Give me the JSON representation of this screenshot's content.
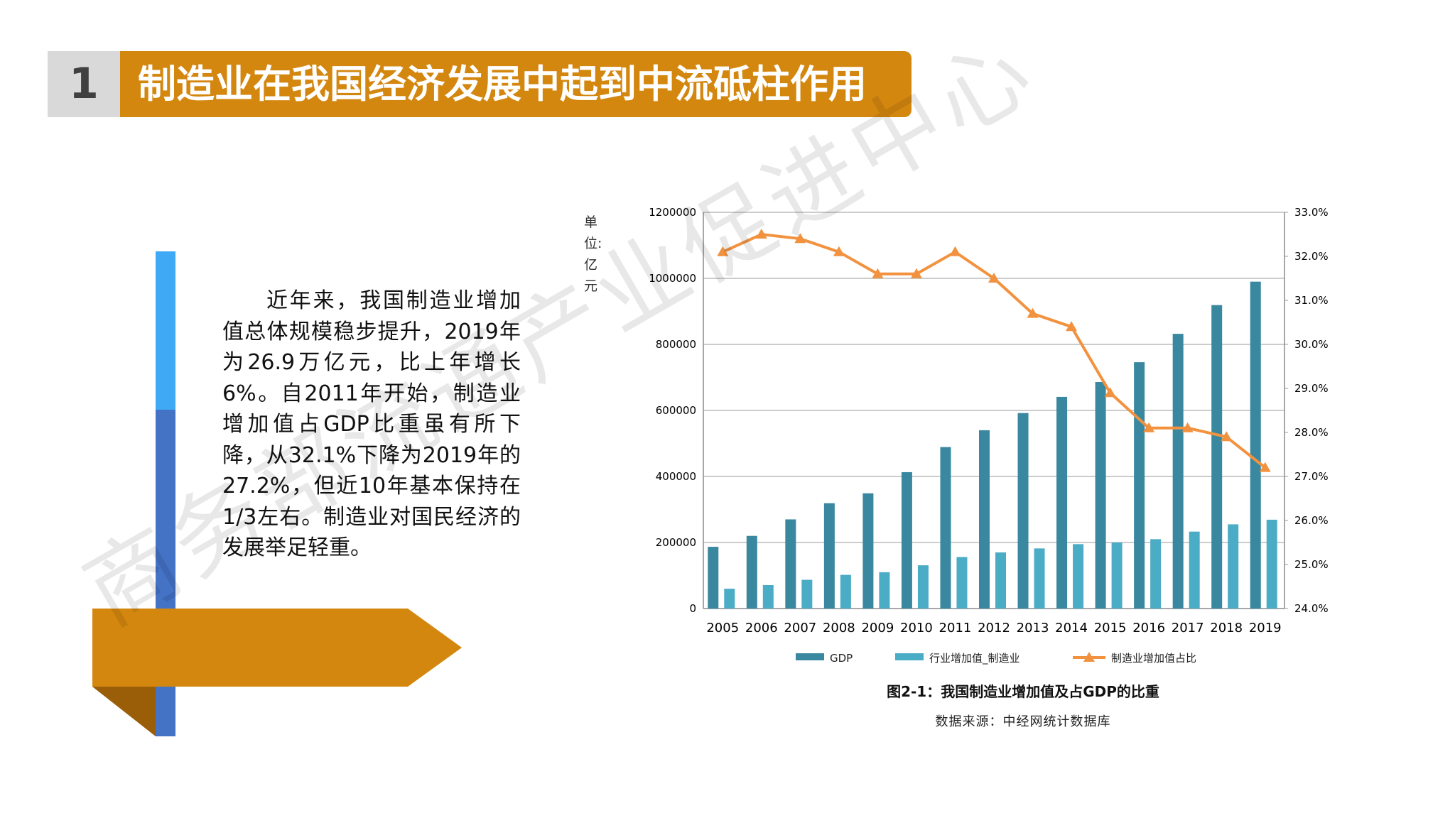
{
  "header": {
    "number": "1",
    "title": "制造业在我国经济发展中起到中流砥柱作用"
  },
  "body": {
    "paragraph": "近年来，我国制造业增加值总体规模稳步提升，2019年为26.9万亿元，比上年增长6%。自2011年开始，制造业增加值占GDP比重虽有所下降，从32.1%下降为2019年的27.2%，但近10年基本保持在1/3左右。制造业对国民经济的发展举足轻重。"
  },
  "unit_label": [
    "单",
    "位:",
    "亿",
    "元"
  ],
  "chart_data": {
    "type": "bar",
    "title": "图2-1：我国制造业增加值及占GDP的比重",
    "source": "数据来源：中经网统计数据库",
    "categories": [
      "2005",
      "2006",
      "2007",
      "2008",
      "2009",
      "2010",
      "2011",
      "2012",
      "2013",
      "2014",
      "2015",
      "2016",
      "2017",
      "2018",
      "2019"
    ],
    "series": [
      {
        "name": "GDP",
        "kind": "bar",
        "axis": "left",
        "color": "#3a88a0",
        "values": [
          187000,
          220000,
          270000,
          319000,
          349000,
          413000,
          489000,
          540000,
          592000,
          641000,
          686000,
          746000,
          832000,
          919000,
          990000
        ]
      },
      {
        "name": "行业增加值_制造业",
        "kind": "bar",
        "axis": "left",
        "color": "#4bacc6",
        "values": [
          60000,
          71000,
          87000,
          102000,
          110000,
          131000,
          156000,
          170000,
          182000,
          195000,
          200000,
          210000,
          233000,
          255000,
          269000
        ]
      },
      {
        "name": "制造业增加值占比",
        "kind": "line",
        "axis": "right",
        "color": "#f2923f",
        "values": [
          32.1,
          32.5,
          32.4,
          32.1,
          31.6,
          31.6,
          32.1,
          31.5,
          30.7,
          30.4,
          28.9,
          28.1,
          28.1,
          27.9,
          27.2
        ]
      }
    ],
    "y_left": {
      "min": 0,
      "max": 1200000,
      "ticks": [
        "0",
        "200000",
        "400000",
        "600000",
        "800000",
        "1000000",
        "1200000"
      ]
    },
    "y_right": {
      "min": 24,
      "max": 33,
      "ticks": [
        "24.0%",
        "25.0%",
        "26.0%",
        "27.0%",
        "28.0%",
        "29.0%",
        "30.0%",
        "31.0%",
        "32.0%",
        "33.0%"
      ]
    },
    "legend_position": "bottom"
  },
  "watermark": "商务部流通产业促进中心",
  "colors": {
    "accent": "#d4870f",
    "blue_light": "#3fa9f5",
    "blue_dark": "#4472c4",
    "gray": "#d9d9d9"
  }
}
